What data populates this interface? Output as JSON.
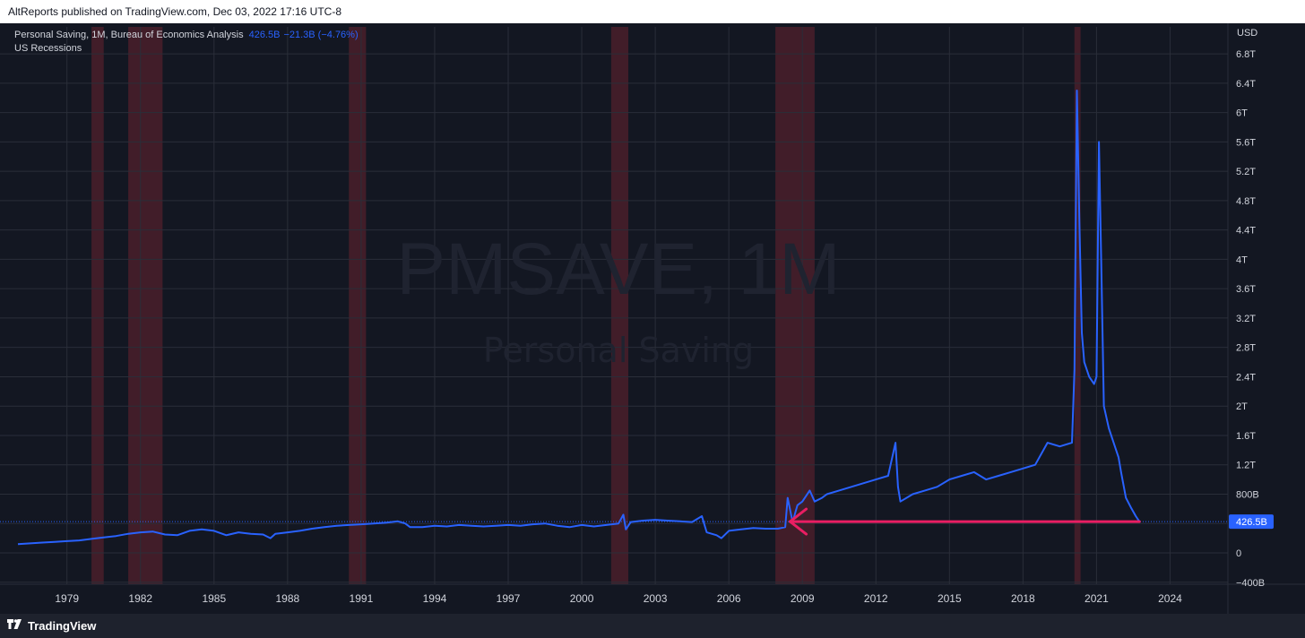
{
  "header": {
    "text": "AltReports published on TradingView.com, Dec 03, 2022 17:16 UTC-8"
  },
  "legend": {
    "series_label": "Personal Saving, 1M, Bureau of Economics Analysis",
    "value": "426.5B",
    "change": "−21.3B (−4.76%)",
    "overlay_label": "US Recessions"
  },
  "watermark": {
    "symbol": "PMSAVE, 1M",
    "description": "Personal Saving"
  },
  "footer": {
    "brand": "TradingView"
  },
  "colors": {
    "background": "#131722",
    "series": "#2962ff",
    "recession": "#4a1f2a",
    "arrow": "#e91e63",
    "grid": "#2a2e39"
  },
  "chart_data": {
    "type": "line",
    "currency_label": "USD",
    "ylim": [
      -400,
      7000
    ],
    "y_unit": "billions USD",
    "y_ticks": [
      {
        "value": -400,
        "label": "−400B"
      },
      {
        "value": 0,
        "label": "0"
      },
      {
        "value": 400,
        "label": ""
      },
      {
        "value": 800,
        "label": "800B"
      },
      {
        "value": 1200,
        "label": "1.2T"
      },
      {
        "value": 1600,
        "label": "1.6T"
      },
      {
        "value": 2000,
        "label": "2T"
      },
      {
        "value": 2400,
        "label": "2.4T"
      },
      {
        "value": 2800,
        "label": "2.8T"
      },
      {
        "value": 3200,
        "label": "3.2T"
      },
      {
        "value": 3600,
        "label": "3.6T"
      },
      {
        "value": 4000,
        "label": "4T"
      },
      {
        "value": 4400,
        "label": "4.4T"
      },
      {
        "value": 4800,
        "label": "4.8T"
      },
      {
        "value": 5200,
        "label": "5.2T"
      },
      {
        "value": 5600,
        "label": "5.6T"
      },
      {
        "value": 6000,
        "label": "6T"
      },
      {
        "value": 6400,
        "label": "6.4T"
      },
      {
        "value": 6800,
        "label": "6.8T"
      }
    ],
    "xlim": [
      1977.0,
      2026.0
    ],
    "x_ticks": [
      {
        "value": 1979,
        "label": "1979"
      },
      {
        "value": 1982,
        "label": "1982"
      },
      {
        "value": 1985,
        "label": "1985"
      },
      {
        "value": 1988,
        "label": "1988"
      },
      {
        "value": 1991,
        "label": "1991"
      },
      {
        "value": 1994,
        "label": "1994"
      },
      {
        "value": 1997,
        "label": "1997"
      },
      {
        "value": 2000,
        "label": "2000"
      },
      {
        "value": 2003,
        "label": "2003"
      },
      {
        "value": 2006,
        "label": "2006"
      },
      {
        "value": 2009,
        "label": "2009"
      },
      {
        "value": 2012,
        "label": "2012"
      },
      {
        "value": 2015,
        "label": "2015"
      },
      {
        "value": 2018,
        "label": "2018"
      },
      {
        "value": 2021,
        "label": "2021"
      },
      {
        "value": 2024,
        "label": "2024"
      }
    ],
    "last_value": 426.5,
    "last_value_label": "426.5B",
    "recessions": [
      [
        1980.0,
        1980.5
      ],
      [
        1981.5,
        1982.9
      ],
      [
        1990.5,
        1991.2
      ],
      [
        2001.2,
        2001.9
      ],
      [
        2007.9,
        2009.5
      ],
      [
        2020.1,
        2020.35
      ]
    ],
    "arrow": {
      "from": [
        2022.75,
        426.5
      ],
      "to": [
        2008.5,
        426.5
      ]
    },
    "series": [
      {
        "x": [
          1977.0,
          1977.5,
          1978.0,
          1978.5,
          1979.0,
          1979.5,
          1980.0,
          1980.5,
          1981.0,
          1981.5,
          1982.0,
          1982.5,
          1983.0,
          1983.5,
          1984.0,
          1984.5,
          1985.0,
          1985.5,
          1986.0,
          1986.5,
          1987.0,
          1987.3,
          1987.5,
          1988.0,
          1988.5,
          1989.0,
          1989.5,
          1990.0,
          1990.5,
          1991.0,
          1991.5,
          1992.0,
          1992.5,
          1992.8,
          1993.0,
          1993.5,
          1994.0,
          1994.5,
          1995.0,
          1995.5,
          1996.0,
          1996.5,
          1997.0,
          1997.5,
          1998.0,
          1998.5,
          1999.0,
          1999.5,
          2000.0,
          2000.5,
          2001.0,
          2001.5,
          2001.7,
          2001.8,
          2002.0,
          2002.5,
          2003.0,
          2003.5,
          2004.0,
          2004.5,
          2004.9,
          2005.1,
          2005.5,
          2005.7,
          2006.0,
          2006.5,
          2007.0,
          2007.5,
          2008.0,
          2008.3,
          2008.4,
          2008.6,
          2008.8,
          2009.0,
          2009.3,
          2009.5,
          2009.8,
          2010.0,
          2010.5,
          2011.0,
          2011.5,
          2012.0,
          2012.5,
          2012.8,
          2012.9,
          2013.0,
          2013.5,
          2014.0,
          2014.5,
          2015.0,
          2015.5,
          2016.0,
          2016.5,
          2017.0,
          2017.5,
          2018.0,
          2018.5,
          2019.0,
          2019.5,
          2020.0,
          2020.1,
          2020.2,
          2020.3,
          2020.4,
          2020.5,
          2020.7,
          2020.9,
          2021.0,
          2021.1,
          2021.2,
          2021.3,
          2021.5,
          2021.7,
          2021.9,
          2022.0,
          2022.2,
          2022.4,
          2022.6,
          2022.75
        ],
        "y": [
          120,
          130,
          140,
          150,
          160,
          170,
          190,
          210,
          230,
          260,
          280,
          290,
          250,
          240,
          300,
          320,
          300,
          240,
          280,
          260,
          250,
          200,
          260,
          280,
          300,
          330,
          350,
          370,
          380,
          390,
          400,
          410,
          430,
          400,
          350,
          350,
          370,
          360,
          380,
          370,
          360,
          370,
          380,
          370,
          390,
          400,
          370,
          350,
          380,
          360,
          380,
          400,
          520,
          320,
          420,
          440,
          450,
          440,
          430,
          420,
          500,
          280,
          240,
          200,
          300,
          320,
          340,
          330,
          330,
          350,
          750,
          420,
          650,
          700,
          850,
          700,
          750,
          800,
          850,
          900,
          950,
          1000,
          1050,
          1500,
          900,
          700,
          800,
          850,
          900,
          1000,
          1050,
          1100,
          1000,
          1050,
          1100,
          1150,
          1200,
          1500,
          1450,
          1500,
          2500,
          6300,
          4500,
          3000,
          2600,
          2400,
          2300,
          2400,
          5600,
          3800,
          2000,
          1700,
          1500,
          1300,
          1100,
          750,
          620,
          500,
          426.5
        ]
      }
    ]
  }
}
